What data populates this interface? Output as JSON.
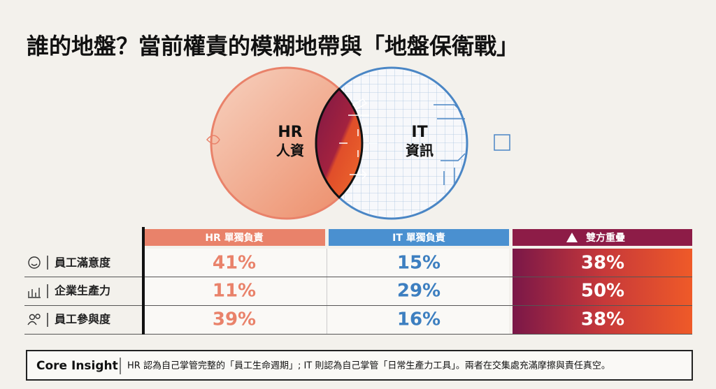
{
  "title": "誰的地盤？當前權責的模糊地帶與「地盤保衛戰」",
  "venn": {
    "left": {
      "code": "HR",
      "label": "人資"
    },
    "right": {
      "code": "IT",
      "label": "資訊"
    }
  },
  "table": {
    "columns": [
      "HR 單獨負責",
      "IT 單獨負責",
      "雙方重疊"
    ],
    "rows": [
      {
        "label": "員工滿意度",
        "cells": [
          "41%",
          "15%",
          "38%"
        ]
      },
      {
        "label": "企業生產力",
        "cells": [
          "11%",
          "29%",
          "50%"
        ]
      },
      {
        "label": "員工參與度",
        "cells": [
          "39%",
          "16%",
          "38%"
        ]
      }
    ]
  },
  "footer": {
    "label": "Core Insight",
    "text": "HR 認為自己掌管完整的「員工生命週期」; IT 則認為自己掌管「日常生產力工具」。兩者在交集處充滿摩擦與責任真空。"
  }
}
